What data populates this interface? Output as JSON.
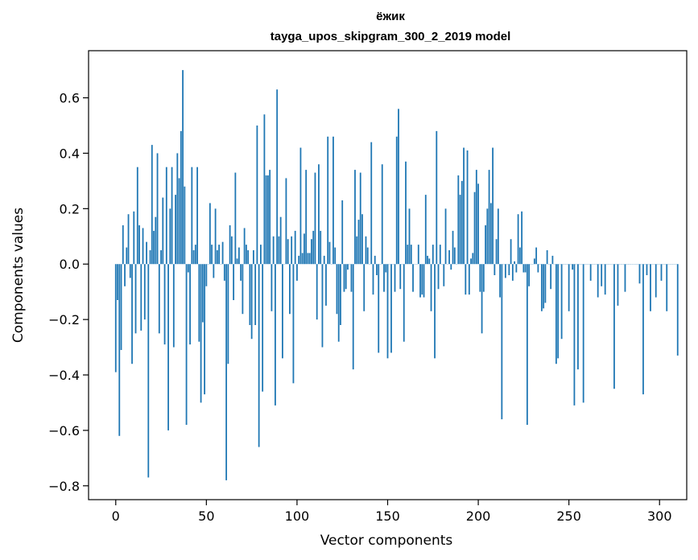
{
  "chart_data": {
    "type": "bar",
    "title": "ёжик",
    "subtitle": "tayga_upos_skipgram_300_2_2019 model",
    "xlabel": "Vector components",
    "ylabel": "Components values",
    "xlim": [
      -15,
      315
    ],
    "ylim": [
      -0.85,
      0.77
    ],
    "xticks": [
      0,
      50,
      100,
      150,
      200,
      250,
      300
    ],
    "yticks": [
      -0.8,
      -0.6,
      -0.4,
      -0.2,
      0.0,
      0.2,
      0.4,
      0.6
    ],
    "ytick_labels": [
      "−0.8",
      "−0.6",
      "−0.4",
      "−0.2",
      "0.0",
      "0.2",
      "0.4",
      "0.6"
    ],
    "xtick_labels": [
      "0",
      "50",
      "100",
      "150",
      "200",
      "250",
      "300"
    ],
    "bar_color": "#1f77b4",
    "values": [
      -0.39,
      -0.13,
      -0.62,
      -0.31,
      0.14,
      -0.08,
      0.06,
      0.18,
      -0.05,
      -0.36,
      0.19,
      -0.25,
      0.35,
      0.14,
      -0.24,
      0.13,
      -0.2,
      0.08,
      -0.77,
      0.05,
      0.43,
      0.12,
      0.17,
      0.4,
      -0.25,
      0.05,
      0.24,
      -0.29,
      0.35,
      -0.6,
      0.2,
      0.35,
      -0.3,
      0.25,
      0.4,
      0.31,
      0.48,
      0.7,
      0.28,
      -0.58,
      -0.03,
      -0.29,
      0.35,
      0.05,
      0.07,
      0.35,
      -0.28,
      -0.5,
      -0.21,
      -0.47,
      -0.08,
      0.0,
      0.22,
      0.07,
      -0.05,
      0.2,
      0.05,
      0.07,
      0.0,
      0.08,
      -0.06,
      -0.78,
      -0.36,
      0.14,
      0.1,
      -0.13,
      0.33,
      0.02,
      0.06,
      -0.06,
      -0.18,
      0.13,
      0.07,
      0.05,
      -0.22,
      -0.27,
      0.05,
      -0.22,
      0.5,
      -0.66,
      0.07,
      -0.46,
      0.54,
      0.32,
      0.32,
      0.34,
      -0.17,
      0.1,
      -0.51,
      0.63,
      0.1,
      0.17,
      -0.34,
      0.0,
      0.31,
      0.09,
      -0.18,
      0.1,
      -0.43,
      0.12,
      -0.06,
      0.03,
      0.42,
      0.04,
      0.11,
      0.34,
      0.04,
      0.04,
      0.09,
      0.12,
      0.33,
      -0.2,
      0.36,
      0.12,
      -0.3,
      0.03,
      -0.15,
      0.46,
      0.08,
      0.0,
      0.46,
      0.06,
      -0.18,
      -0.28,
      -0.22,
      0.23,
      -0.1,
      -0.09,
      -0.02,
      0.0,
      -0.1,
      -0.38,
      0.34,
      0.1,
      0.16,
      0.33,
      0.18,
      -0.17,
      0.1,
      0.06,
      0.0,
      0.44,
      -0.11,
      0.03,
      -0.04,
      -0.32,
      0.0,
      0.36,
      -0.1,
      -0.03,
      -0.34,
      0.0,
      -0.32,
      0.0,
      -0.1,
      0.46,
      0.56,
      -0.09,
      0.0,
      -0.28,
      0.37,
      0.07,
      0.2,
      0.07,
      -0.1,
      0.0,
      0.0,
      0.07,
      -0.12,
      -0.11,
      -0.12,
      0.25,
      0.03,
      0.02,
      -0.17,
      0.07,
      -0.34,
      0.48,
      -0.09,
      0.07,
      0.0,
      -0.08,
      0.2,
      0.0,
      0.05,
      -0.02,
      0.12,
      0.06,
      0.0,
      0.32,
      0.25,
      0.3,
      0.42,
      -0.11,
      0.41,
      -0.11,
      0.02,
      0.04,
      0.26,
      0.34,
      0.29,
      -0.1,
      -0.25,
      -0.1,
      0.14,
      0.2,
      0.34,
      0.22,
      0.42,
      -0.04,
      0.09,
      0.2,
      -0.12,
      -0.56,
      0.0,
      -0.05,
      0.0,
      -0.04,
      0.09,
      -0.06,
      0.01,
      -0.03,
      0.18,
      0.06,
      0.19,
      -0.03,
      -0.03,
      -0.58,
      -0.08,
      0.0,
      0.0,
      0.02,
      0.06,
      -0.03,
      0.0,
      -0.17,
      -0.16,
      -0.14,
      0.05,
      0.0,
      -0.09,
      0.03,
      0.0,
      -0.36,
      -0.34,
      0.0,
      -0.27,
      0.0,
      0.0,
      0.0,
      -0.17,
      0.0,
      -0.02,
      -0.51,
      0.0,
      -0.38,
      0.0,
      0.0,
      -0.5,
      0.0,
      0.0,
      0.0,
      -0.06,
      0.0,
      0.0,
      0.0,
      -0.12,
      0.0,
      -0.08,
      0.0,
      -0.11,
      0.0,
      0.0,
      0.0,
      0.0,
      -0.45,
      0.0,
      -0.15,
      0.0,
      0.0,
      0.0,
      -0.1,
      0.0,
      0.0,
      0.0,
      0.0,
      0.0,
      0.0,
      0.0,
      -0.07,
      0.0,
      -0.47,
      0.0,
      -0.04,
      0.0,
      -0.17,
      0.0,
      0.0,
      -0.12,
      0.0,
      0.0,
      -0.06,
      0.0,
      0.0,
      -0.17,
      0.0,
      0.0,
      0.0,
      0.0,
      0.0,
      -0.33
    ]
  }
}
